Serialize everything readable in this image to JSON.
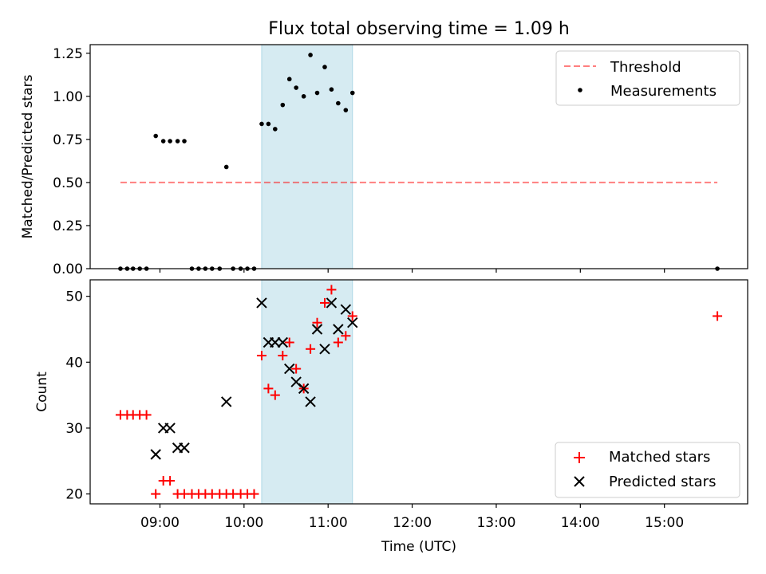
{
  "chart_data": [
    {
      "type": "scatter",
      "title": "Flux total observing time = 1.09 h",
      "xlabel": "",
      "ylabel": "Matched/Predicted stars",
      "ylim": [
        0,
        1.3
      ],
      "yticks": [
        0.0,
        0.25,
        0.5,
        0.75,
        1.0,
        1.25
      ],
      "ytick_labels": [
        "0.00",
        "0.25",
        "0.50",
        "0.75",
        "1.00",
        "1.25"
      ],
      "x_axis": "time of day (hours, UTC)",
      "xlim": [
        8.17,
        15.99
      ],
      "highlight_span": {
        "x": [
          10.21,
          11.29
        ],
        "color": "#add8e6"
      },
      "legend": {
        "placement": "top-right",
        "entries": [
          "Threshold",
          "Measurements"
        ]
      },
      "threshold": {
        "name": "Threshold",
        "value": 0.5,
        "x": [
          8.53,
          15.63
        ],
        "color": "#ff0000",
        "style": "dashed"
      },
      "series": [
        {
          "name": "Measurements",
          "color": "#000000",
          "x": [
            8.53,
            8.61,
            8.68,
            8.76,
            8.84,
            8.95,
            9.04,
            9.12,
            9.21,
            9.29,
            9.38,
            9.46,
            9.54,
            9.62,
            9.71,
            9.79,
            9.87,
            9.96,
            10.04,
            10.12,
            10.21,
            10.29,
            10.37,
            10.46,
            10.54,
            10.62,
            10.71,
            10.79,
            10.87,
            10.96,
            11.04,
            11.12,
            11.21,
            11.29,
            15.63
          ],
          "y": [
            0,
            0,
            0,
            0,
            0,
            0.77,
            0.74,
            0.74,
            0.74,
            0.74,
            0,
            0,
            0,
            0,
            0,
            0.59,
            0,
            0,
            0,
            0,
            0.84,
            0.84,
            0.81,
            0.95,
            1.1,
            1.05,
            1.0,
            1.24,
            1.02,
            1.17,
            1.04,
            0.96,
            0.92,
            1.02,
            0
          ]
        }
      ]
    },
    {
      "type": "scatter",
      "title": "",
      "xlabel": "Time (UTC)",
      "ylabel": "Count",
      "ylim": [
        18.5,
        52.5
      ],
      "yticks": [
        20,
        30,
        40,
        50
      ],
      "ytick_labels": [
        "20",
        "30",
        "40",
        "50"
      ],
      "xlim": [
        8.17,
        15.99
      ],
      "xticks": [
        9,
        10,
        11,
        12,
        13,
        14,
        15
      ],
      "xtick_labels": [
        "09:00",
        "10:00",
        "11:00",
        "12:00",
        "13:00",
        "14:00",
        "15:00"
      ],
      "highlight_span": {
        "x": [
          10.21,
          11.29
        ],
        "color": "#add8e6"
      },
      "legend": {
        "placement": "bottom-right",
        "entries": [
          "Matched stars",
          "Predicted stars"
        ]
      },
      "series": [
        {
          "name": "Matched stars",
          "marker": "plus",
          "color": "#ff0000",
          "x": [
            8.53,
            8.61,
            8.68,
            8.76,
            8.84,
            8.95,
            9.04,
            9.12,
            9.21,
            9.29,
            9.38,
            9.46,
            9.54,
            9.62,
            9.71,
            9.79,
            9.87,
            9.96,
            10.04,
            10.12,
            10.21,
            10.29,
            10.37,
            10.46,
            10.54,
            10.62,
            10.71,
            10.79,
            10.87,
            10.96,
            11.04,
            11.12,
            11.21,
            11.29,
            15.63
          ],
          "y": [
            32,
            32,
            32,
            32,
            32,
            20,
            22,
            22,
            20,
            20,
            20,
            20,
            20,
            20,
            20,
            20,
            20,
            20,
            20,
            20,
            41,
            36,
            35,
            41,
            43,
            39,
            36,
            42,
            46,
            49,
            51,
            43,
            44,
            47,
            47
          ]
        },
        {
          "name": "Predicted stars",
          "marker": "x",
          "color": "#000000",
          "x": [
            8.95,
            9.04,
            9.12,
            9.21,
            9.29,
            9.79,
            10.21,
            10.29,
            10.37,
            10.46,
            10.54,
            10.62,
            10.71,
            10.79,
            10.87,
            10.96,
            11.04,
            11.12,
            11.21,
            11.29
          ],
          "y": [
            26,
            30,
            30,
            27,
            27,
            34,
            49,
            43,
            43,
            43,
            39,
            37,
            36,
            34,
            45,
            42,
            49,
            45,
            48,
            46
          ]
        }
      ]
    }
  ]
}
